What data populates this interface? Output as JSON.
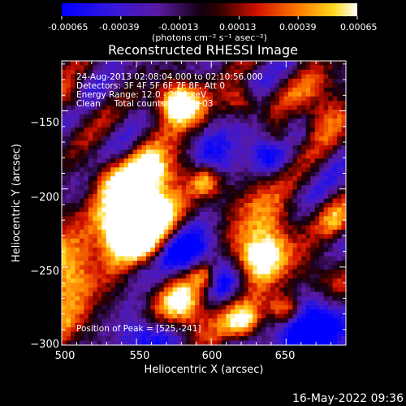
{
  "colorbar": {
    "ticks": [
      "-0.00065",
      "-0.00039",
      "-0.00013",
      "0.00013",
      "0.00039",
      "0.00065"
    ],
    "tick_values": [
      -0.00065,
      -0.00039,
      -0.00013,
      0.00013,
      0.00039,
      0.00065
    ],
    "unit_label": "(photons cm⁻² s⁻¹ asec⁻²)",
    "colormap": "blue-purple-black-red-orange-yellow-white",
    "range": [
      -0.00065,
      0.00065
    ]
  },
  "chart_data": {
    "type": "heatmap",
    "title": "Reconstructed RHESSI Image",
    "xlabel": "Heliocentric X (arcsec)",
    "ylabel": "Heliocentric Y (arcsec)",
    "xlim": [
      500,
      690
    ],
    "ylim": [
      -300,
      -118
    ],
    "xticks": [
      500,
      550,
      600,
      650
    ],
    "yticks": [
      -150,
      -200,
      -250,
      -300
    ],
    "xtick_labels": [
      "500",
      "550",
      "600",
      "650"
    ],
    "ytick_labels": [
      "−150",
      "−200",
      "−250",
      "−300"
    ],
    "annotations": [
      "24-Aug-2013 02:08:04.000 to 02:10:56.000",
      "Detectors: 3F 4F 5F 6F 7F 8F, Att 0",
      "Energy Range: 12.0 - 25.0 keV",
      "Clean     Total counts: 4.56E+03"
    ],
    "peak_label": "Position of Peak = [525,-241]",
    "peak_position": [
      525,
      -241
    ]
  },
  "footer": {
    "timestamp": "16-May-2022 09:36"
  }
}
